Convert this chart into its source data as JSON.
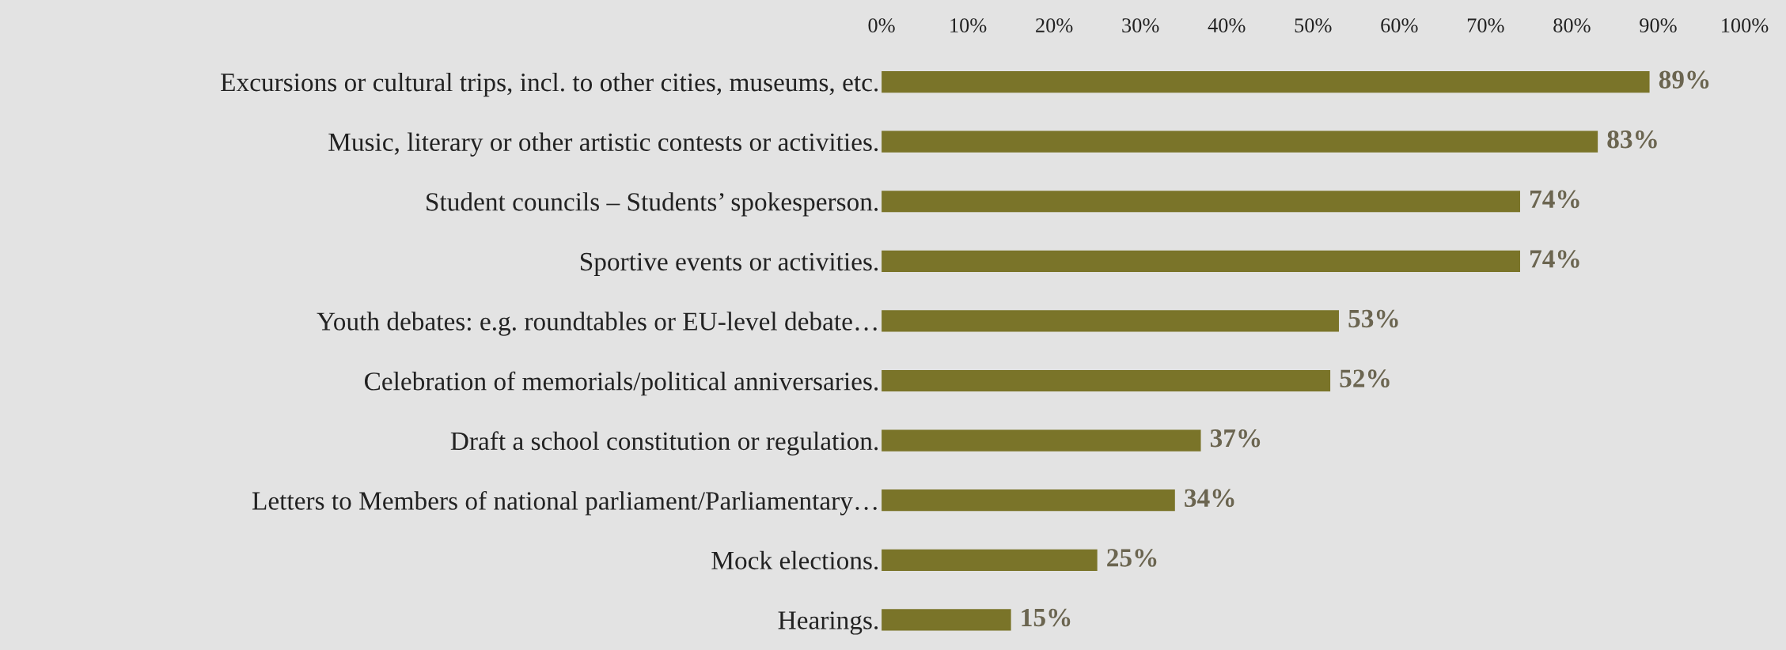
{
  "chart_data": {
    "type": "bar",
    "orientation": "horizontal",
    "categories": [
      "Excursions or cultural trips, incl. to other cities, museums, etc.",
      "Music, literary or other artistic contests or activities.",
      "Student councils – Students’ spokesperson.",
      "Sportive events or activities.",
      "Youth debates: e.g. roundtables or EU-level debate…",
      "Celebration of memorials/political anniversaries.",
      "Draft a school constitution or regulation.",
      "Letters to Members of national parliament/Parliamentary…",
      "Mock elections.",
      "Hearings."
    ],
    "values": [
      89,
      83,
      74,
      74,
      53,
      52,
      37,
      34,
      25,
      15
    ],
    "value_labels": [
      "89%",
      "83%",
      "74%",
      "74%",
      "53%",
      "52%",
      "37%",
      "34%",
      "25%",
      "15%"
    ],
    "color": "#7a7429",
    "xlim": [
      0,
      100
    ],
    "xticks": [
      {
        "value": 0,
        "label": "0%"
      },
      {
        "value": 10,
        "label": "10%"
      },
      {
        "value": 20,
        "label": "20%"
      },
      {
        "value": 30,
        "label": "30%"
      },
      {
        "value": 40,
        "label": "40%"
      },
      {
        "value": 50,
        "label": "50%"
      },
      {
        "value": 60,
        "label": "60%"
      },
      {
        "value": 70,
        "label": "70%"
      },
      {
        "value": 80,
        "label": "80%"
      },
      {
        "value": 90,
        "label": "90%"
      },
      {
        "value": 100,
        "label": "100%"
      }
    ],
    "grid": false
  }
}
